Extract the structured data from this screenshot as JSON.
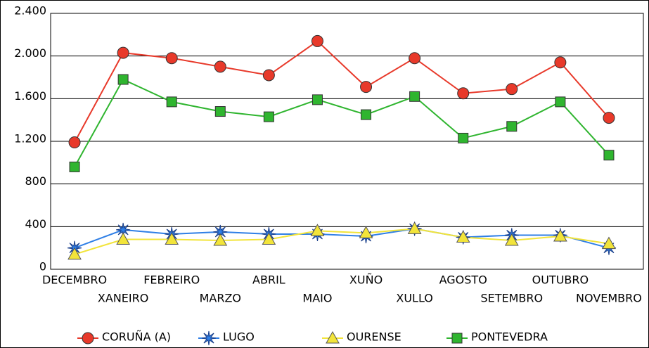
{
  "chart_data": {
    "type": "line",
    "categories": [
      "DECEMBRO",
      "XANEIRO",
      "FEBREIRO",
      "MARZO",
      "ABRIL",
      "MAIO",
      "XUÑO",
      "XULLO",
      "AGOSTO",
      "SETEMBRO",
      "OUTUBRO",
      "NOVEMBRO"
    ],
    "series": [
      {
        "name": "CORUÑA (A)",
        "color": "#e8392a",
        "marker": "circle",
        "values": [
          1190,
          2030,
          1980,
          1900,
          1820,
          2140,
          1710,
          1980,
          1650,
          1690,
          1940,
          1420
        ]
      },
      {
        "name": "LUGO",
        "color": "#2f7fe6",
        "marker": "star",
        "values": [
          200,
          370,
          330,
          350,
          330,
          330,
          310,
          380,
          300,
          320,
          320,
          200
        ]
      },
      {
        "name": "OURENSE",
        "color": "#f2e43a",
        "marker": "triangle",
        "values": [
          140,
          280,
          280,
          270,
          280,
          360,
          340,
          380,
          300,
          270,
          310,
          240
        ]
      },
      {
        "name": "PONTEVEDRA",
        "color": "#2fb52f",
        "marker": "square",
        "values": [
          960,
          1780,
          1570,
          1480,
          1430,
          1590,
          1450,
          1620,
          1230,
          1340,
          1570,
          1070
        ]
      }
    ],
    "ylim": [
      0,
      2400
    ],
    "yticks": [
      0,
      400,
      800,
      {
        "value": 1200,
        "label": "1.200"
      },
      {
        "value": 1600,
        "label": "1.600"
      },
      {
        "value": 2000,
        "label": "2.000"
      },
      {
        "value": 2400,
        "label": "2.400"
      }
    ],
    "grid": true
  }
}
